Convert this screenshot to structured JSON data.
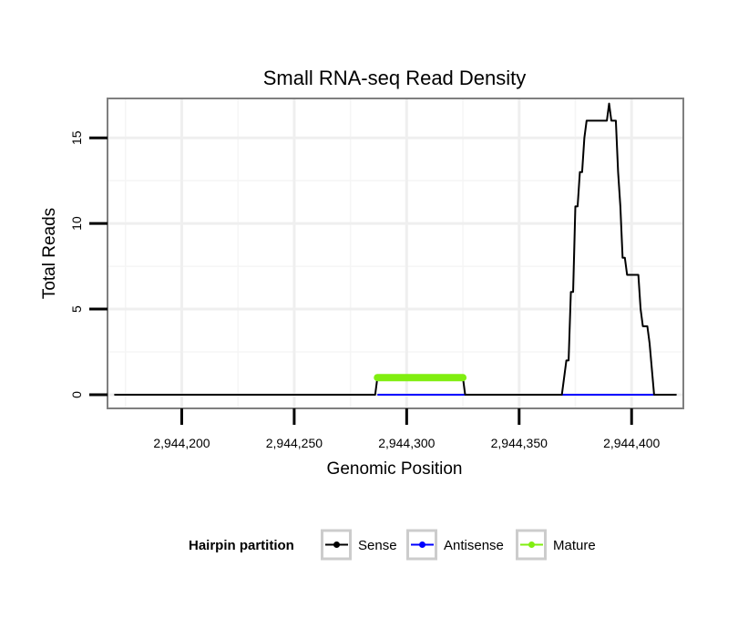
{
  "chart_data": {
    "type": "line",
    "title": "Small RNA-seq Read Density",
    "xlabel": "Genomic Position",
    "ylabel": "Total Reads",
    "xlim": [
      2944167,
      2944423
    ],
    "ylim": [
      -0.8,
      17.3
    ],
    "xticks": [
      2944200,
      2944250,
      2944300,
      2944350,
      2944400
    ],
    "xtick_labels": [
      "2,944,200",
      "2,944,250",
      "2,944,300",
      "2,944,350",
      "2,944,400"
    ],
    "yticks": [
      0,
      5,
      10,
      15
    ],
    "ytick_labels": [
      "0",
      "5",
      "10",
      "15"
    ],
    "x_minor_grid": [
      2944175,
      2944225,
      2944275,
      2944325,
      2944375,
      2944425
    ],
    "y_minor_grid": [
      2.5,
      7.5,
      12.5
    ],
    "grid": true,
    "legend": {
      "title": "Hairpin partition",
      "position": "bottom",
      "entries": [
        {
          "label": "Sense",
          "color": "#000000"
        },
        {
          "label": "Antisense",
          "color": "#0000ff"
        },
        {
          "label": "Mature",
          "color": "#80ee10"
        }
      ]
    },
    "series": [
      {
        "name": "Sense",
        "color": "#000000",
        "points": [
          [
            2944170,
            0
          ],
          [
            2944286,
            0
          ],
          [
            2944287,
            1
          ],
          [
            2944325,
            1
          ],
          [
            2944326,
            0
          ],
          [
            2944369,
            0
          ],
          [
            2944371,
            2
          ],
          [
            2944372,
            2
          ],
          [
            2944373,
            6
          ],
          [
            2944374,
            6
          ],
          [
            2944375,
            11
          ],
          [
            2944376,
            11
          ],
          [
            2944377,
            13
          ],
          [
            2944378,
            13
          ],
          [
            2944379,
            15
          ],
          [
            2944380,
            16
          ],
          [
            2944388,
            16
          ],
          [
            2944389,
            16
          ],
          [
            2944390,
            17
          ],
          [
            2944391,
            16
          ],
          [
            2944393,
            16
          ],
          [
            2944394,
            13
          ],
          [
            2944395,
            11
          ],
          [
            2944396,
            8
          ],
          [
            2944397,
            8
          ],
          [
            2944398,
            7
          ],
          [
            2944399,
            7
          ],
          [
            2944400,
            7
          ],
          [
            2944402,
            7
          ],
          [
            2944403,
            7
          ],
          [
            2944404,
            5
          ],
          [
            2944405,
            4
          ],
          [
            2944406,
            4
          ],
          [
            2944407,
            4
          ],
          [
            2944408,
            3
          ],
          [
            2944410,
            0
          ],
          [
            2944420,
            0
          ]
        ]
      },
      {
        "name": "Antisense",
        "color": "#0000ff",
        "points": [
          [
            2944287,
            0
          ],
          [
            2944325,
            0
          ],
          [
            2944369,
            0
          ],
          [
            2944410,
            0
          ]
        ]
      },
      {
        "name": "Mature",
        "color": "#80ee10",
        "points": [
          [
            2944287,
            1
          ],
          [
            2944325,
            1
          ]
        ]
      }
    ]
  }
}
